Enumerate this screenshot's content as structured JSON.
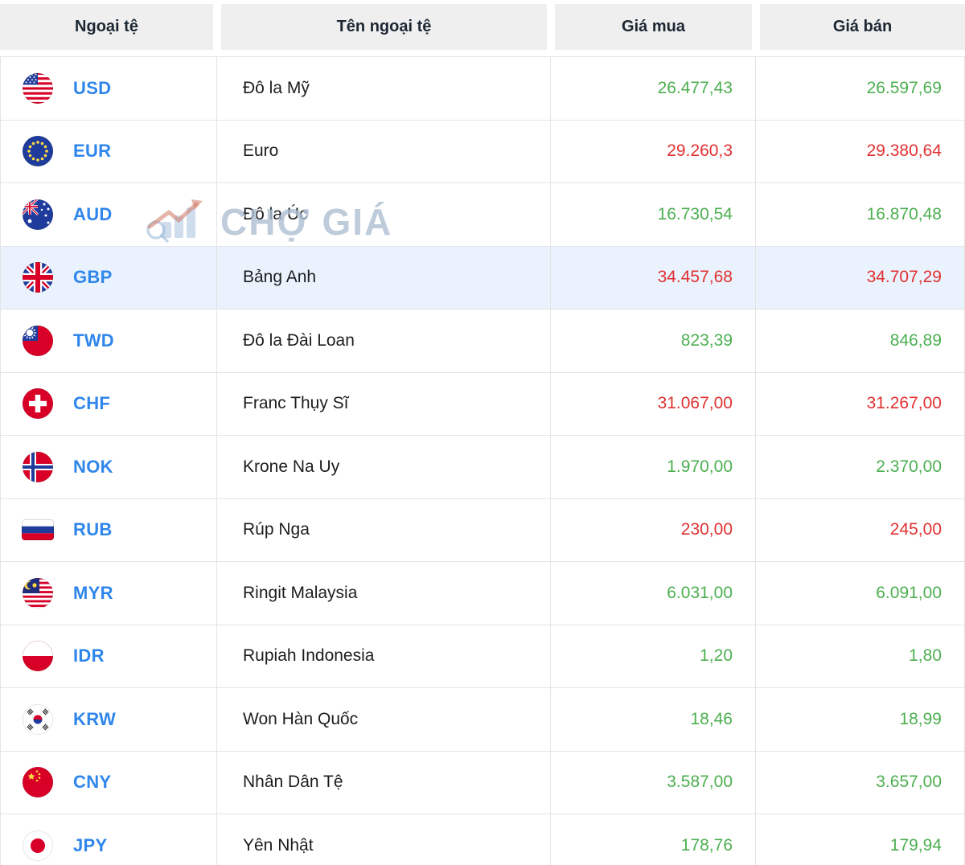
{
  "colors": {
    "green": "#4caf50",
    "red": "#e03131",
    "code_blue": "#2f86eb",
    "highlight": "#e9f2fd",
    "header_bg": "#efefef",
    "header_text": "#1c2733",
    "border": "#e4e4e4"
  },
  "header": {
    "columns": [
      {
        "label": "Ngoại tệ"
      },
      {
        "label": "Tên ngoại tệ"
      },
      {
        "label": "Giá mua"
      },
      {
        "label": "Giá bán"
      }
    ]
  },
  "watermark": {
    "text": "CHỢ GIÁ",
    "icon": "chart-growth-watermark-icon"
  },
  "rows": [
    {
      "code": "USD",
      "flag": "usd-flag-icon",
      "name": "Đô la Mỹ",
      "buy": "26.477,43",
      "sell": "26.597,69",
      "buy_color": "green",
      "sell_color": "green",
      "highlighted": false
    },
    {
      "code": "EUR",
      "flag": "eur-flag-icon",
      "name": "Euro",
      "buy": "29.260,3",
      "sell": "29.380,64",
      "buy_color": "red",
      "sell_color": "red",
      "highlighted": false
    },
    {
      "code": "AUD",
      "flag": "aud-flag-icon",
      "name": "Đô la Úc",
      "buy": "16.730,54",
      "sell": "16.870,48",
      "buy_color": "green",
      "sell_color": "green",
      "highlighted": false
    },
    {
      "code": "GBP",
      "flag": "gbp-flag-icon",
      "name": "Bảng Anh",
      "buy": "34.457,68",
      "sell": "34.707,29",
      "buy_color": "red",
      "sell_color": "red",
      "highlighted": true
    },
    {
      "code": "TWD",
      "flag": "twd-flag-icon",
      "name": "Đô la Đài Loan",
      "buy": "823,39",
      "sell": "846,89",
      "buy_color": "green",
      "sell_color": "green",
      "highlighted": false
    },
    {
      "code": "CHF",
      "flag": "chf-flag-icon",
      "name": "Franc Thụy Sĩ",
      "buy": "31.067,00",
      "sell": "31.267,00",
      "buy_color": "red",
      "sell_color": "red",
      "highlighted": false
    },
    {
      "code": "NOK",
      "flag": "nok-flag-icon",
      "name": "Krone Na Uy",
      "buy": "1.970,00",
      "sell": "2.370,00",
      "buy_color": "green",
      "sell_color": "green",
      "highlighted": false
    },
    {
      "code": "RUB",
      "flag": "rub-flag-icon",
      "name": "Rúp Nga",
      "buy": "230,00",
      "sell": "245,00",
      "buy_color": "red",
      "sell_color": "red",
      "highlighted": false
    },
    {
      "code": "MYR",
      "flag": "myr-flag-icon",
      "name": "Ringit Malaysia",
      "buy": "6.031,00",
      "sell": "6.091,00",
      "buy_color": "green",
      "sell_color": "green",
      "highlighted": false
    },
    {
      "code": "IDR",
      "flag": "idr-flag-icon",
      "name": "Rupiah Indonesia",
      "buy": "1,20",
      "sell": "1,80",
      "buy_color": "green",
      "sell_color": "green",
      "highlighted": false
    },
    {
      "code": "KRW",
      "flag": "krw-flag-icon",
      "name": "Won Hàn Quốc",
      "buy": "18,46",
      "sell": "18,99",
      "buy_color": "green",
      "sell_color": "green",
      "highlighted": false
    },
    {
      "code": "CNY",
      "flag": "cny-flag-icon",
      "name": "Nhân Dân Tệ",
      "buy": "3.587,00",
      "sell": "3.657,00",
      "buy_color": "green",
      "sell_color": "green",
      "highlighted": false
    },
    {
      "code": "JPY",
      "flag": "jpy-flag-icon",
      "name": "Yên Nhật",
      "buy": "178,76",
      "sell": "179,94",
      "buy_color": "green",
      "sell_color": "green",
      "highlighted": false
    }
  ]
}
